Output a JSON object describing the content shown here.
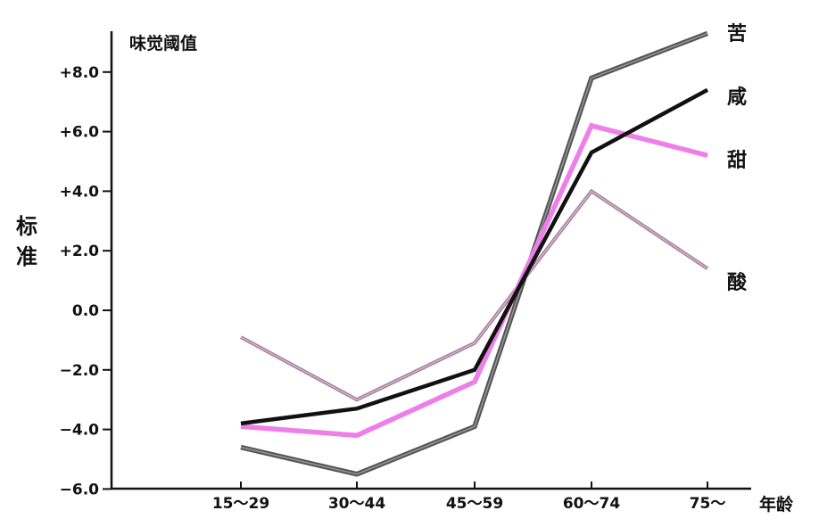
{
  "chart_data": {
    "type": "line",
    "title": "味觉阈值",
    "ylabel": "标准",
    "xlabel": "年龄",
    "categories": [
      "15～29",
      "30～44",
      "45～59",
      "60～74",
      "75～"
    ],
    "ylim": [
      -6,
      9.5
    ],
    "yticks": [
      -6,
      -4,
      -2,
      0,
      2,
      4,
      6,
      8
    ],
    "ytick_labels": [
      "−6.0",
      "−4.0",
      "−2.0",
      "0.0",
      "+2.0",
      "+4.0",
      "+6.0",
      "+8.0"
    ],
    "grid": false,
    "series": [
      {
        "name": "苦",
        "color": "#555555",
        "values": [
          -4.6,
          -5.5,
          -3.9,
          7.8,
          9.3
        ]
      },
      {
        "name": "咸",
        "color": "#111111",
        "values": [
          -3.8,
          -3.3,
          -2.0,
          5.3,
          7.4
        ]
      },
      {
        "name": "甜",
        "color": "#ee7ee8",
        "values": [
          -3.9,
          -4.2,
          -2.4,
          6.2,
          5.2
        ]
      },
      {
        "name": "酸",
        "color": "#a07a98",
        "values": [
          -0.9,
          -3.0,
          -1.1,
          4.0,
          1.4
        ]
      }
    ]
  }
}
